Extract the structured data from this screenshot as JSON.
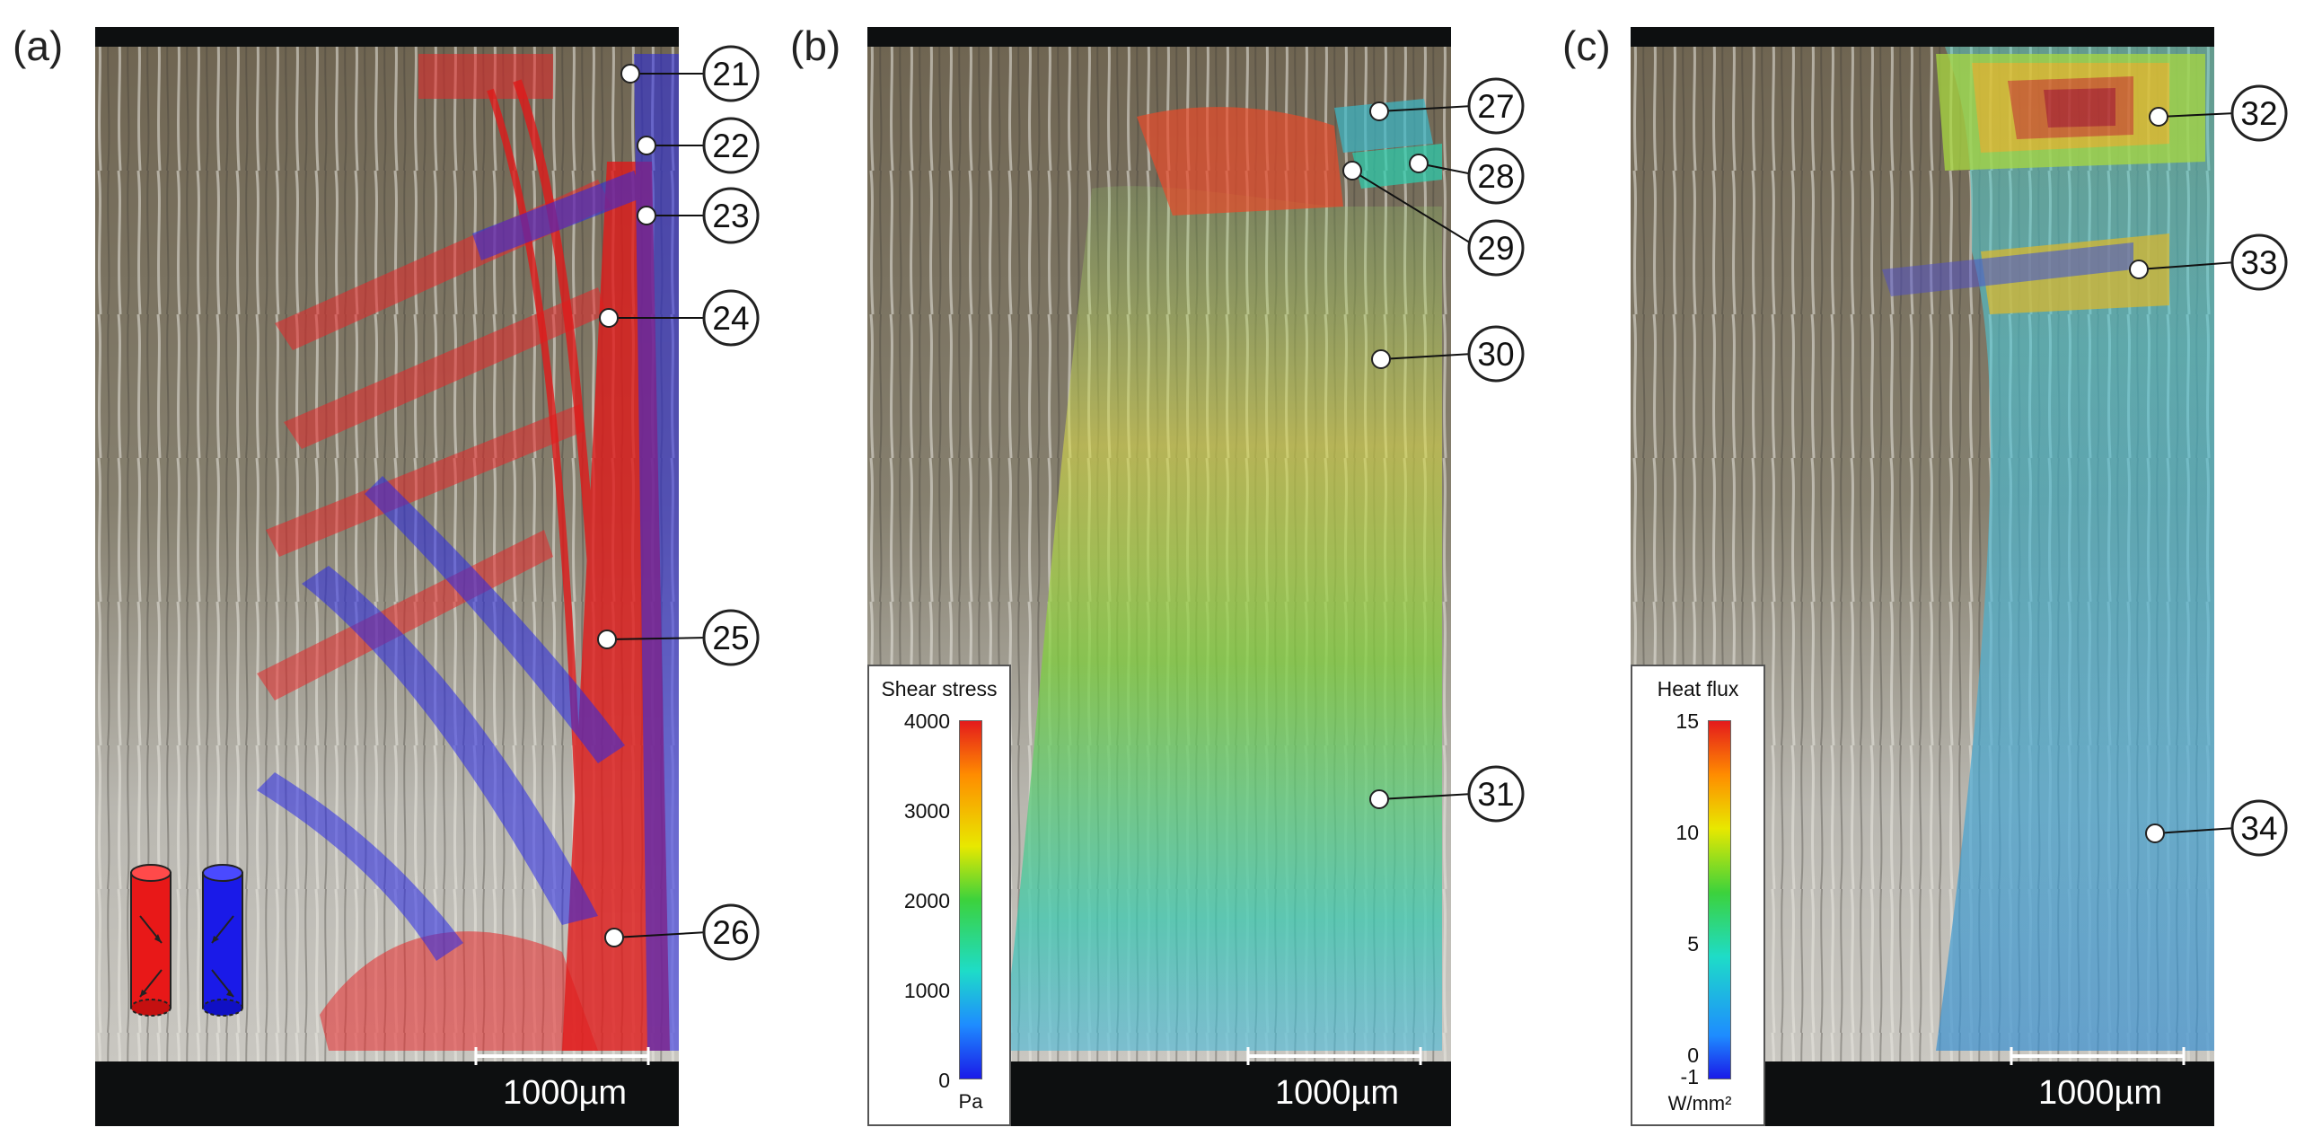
{
  "panels": [
    {
      "label": "(a)",
      "scalebar": "1000µm",
      "callouts": [
        "21",
        "22",
        "23",
        "24",
        "25",
        "26"
      ]
    },
    {
      "label": "(b)",
      "scalebar": "1000µm",
      "callouts": [
        "27",
        "28",
        "29",
        "30",
        "31"
      ],
      "legend": {
        "title": "Shear stress",
        "ticks": [
          "4000",
          "3000",
          "2000",
          "1000",
          "0"
        ],
        "unit": "Pa"
      }
    },
    {
      "label": "(c)",
      "scalebar": "1000µm",
      "callouts": [
        "32",
        "33",
        "34"
      ],
      "legend": {
        "title": "Heat flux",
        "ticks": [
          "15",
          "10",
          "5",
          "0",
          "-1"
        ],
        "unit": "W/mm²"
      }
    }
  ],
  "colors": {
    "red_overlay": "#e8282a",
    "blue_overlay": "#2a2ae8",
    "background_dark": "#0d0f10"
  }
}
